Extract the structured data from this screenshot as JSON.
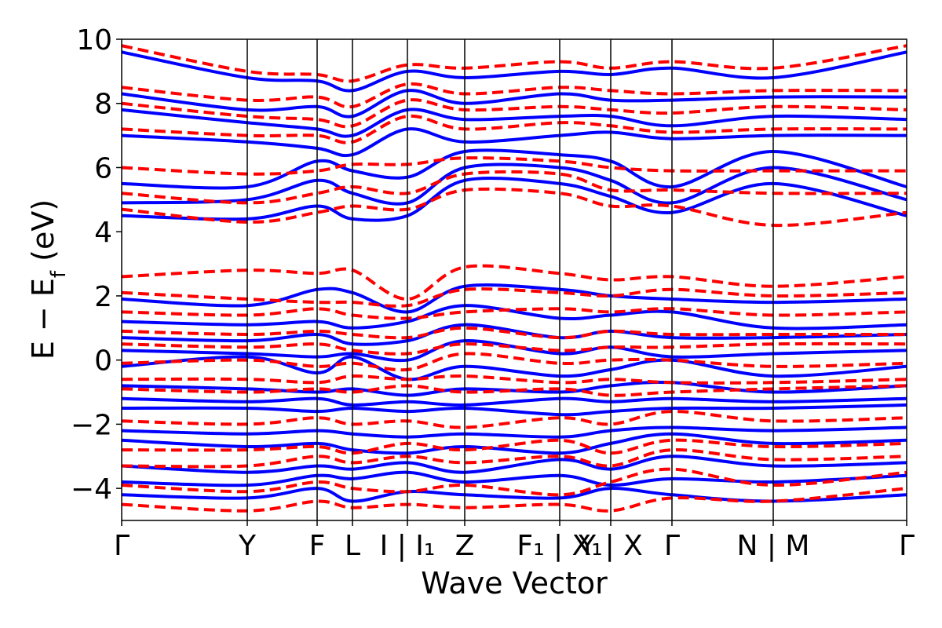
{
  "chart_data": {
    "type": "line",
    "title": "",
    "xlabel": "Wave Vector",
    "ylabel_main": "E − E",
    "ylabel_sub": "f",
    "ylabel_unit": "(eV)",
    "ylim": [
      -5,
      10
    ],
    "yticks": [
      "−4",
      "−2",
      "0",
      "2",
      "4",
      "6",
      "8",
      "10"
    ],
    "ytick_values": [
      -4,
      -2,
      0,
      2,
      4,
      6,
      8,
      10
    ],
    "grid": false,
    "legend": "none",
    "k_points": [
      {
        "label": "Γ",
        "pos": 0
      },
      {
        "label": "Y",
        "pos": 0.16
      },
      {
        "label": "F",
        "pos": 0.249
      },
      {
        "label": "L",
        "pos": 0.294
      },
      {
        "label": "I | I₁",
        "pos": 0.364
      },
      {
        "label": "Z",
        "pos": 0.437
      },
      {
        "label": "F₁ | X₁",
        "pos": 0.558
      },
      {
        "label": "Y | X",
        "pos": 0.623
      },
      {
        "label": "Γ",
        "pos": 0.701
      },
      {
        "label": "N | M",
        "pos": 0.83
      },
      {
        "label": "Γ",
        "pos": 1
      }
    ],
    "series": [
      {
        "style": "solid",
        "color": "#0000ff",
        "bands": [
          {
            "values": [
              -4.2,
              -4.3,
              -4.0,
              -4.4,
              -4.1,
              -4.2,
              -4.3,
              -4.0,
              -4.2,
              -4.4,
              -4.2
            ]
          },
          {
            "values": [
              -3.8,
              -3.9,
              -3.6,
              -3.7,
              -3.5,
              -3.8,
              -3.6,
              -3.9,
              -3.7,
              -3.8,
              -3.6
            ]
          },
          {
            "values": [
              -3.3,
              -3.5,
              -3.3,
              -3.4,
              -3.2,
              -3.5,
              -3.1,
              -3.4,
              -3.0,
              -3.3,
              -3.2
            ]
          },
          {
            "values": [
              -2.5,
              -2.7,
              -2.6,
              -2.8,
              -2.9,
              -2.7,
              -2.9,
              -2.6,
              -2.3,
              -2.6,
              -2.5
            ]
          },
          {
            "values": [
              -2.2,
              -2.3,
              -2.2,
              -2.3,
              -2.4,
              -2.3,
              -2.4,
              -2.2,
              -2.1,
              -2.2,
              -2.1
            ]
          },
          {
            "values": [
              -1.5,
              -1.5,
              -1.6,
              -1.5,
              -1.6,
              -1.5,
              -1.7,
              -1.6,
              -1.5,
              -1.5,
              -1.4
            ]
          },
          {
            "values": [
              -1.2,
              -1.3,
              -1.2,
              -1.4,
              -1.3,
              -1.4,
              -1.2,
              -1.3,
              -1.2,
              -1.3,
              -1.2
            ]
          },
          {
            "values": [
              -0.8,
              -0.9,
              -1.0,
              -0.9,
              -1.1,
              -0.9,
              -1.0,
              -0.8,
              -0.7,
              -1.0,
              -0.8
            ]
          },
          {
            "values": [
              -0.2,
              0.1,
              -0.4,
              0.1,
              -0.6,
              -0.2,
              -0.5,
              -0.3,
              0.0,
              -0.5,
              -0.2
            ]
          },
          {
            "values": [
              0.3,
              0.2,
              0.1,
              0.2,
              0.0,
              0.6,
              0.2,
              0.4,
              0.1,
              0.2,
              0.3
            ]
          },
          {
            "values": [
              0.7,
              0.6,
              0.8,
              0.5,
              0.6,
              1.1,
              0.7,
              0.9,
              0.7,
              0.7,
              0.8
            ]
          },
          {
            "values": [
              1.2,
              1.1,
              1.2,
              1.0,
              1.2,
              1.7,
              1.3,
              1.4,
              1.5,
              1.0,
              1.1
            ]
          },
          {
            "values": [
              1.9,
              1.7,
              2.2,
              2.1,
              1.5,
              2.3,
              2.2,
              2.0,
              1.9,
              1.8,
              1.9
            ]
          },
          {
            "values": [
              4.5,
              4.4,
              4.8,
              4.4,
              4.5,
              5.6,
              5.5,
              5.1,
              4.6,
              5.5,
              4.5
            ]
          },
          {
            "values": [
              4.9,
              5.0,
              5.6,
              5.2,
              4.9,
              6.0,
              6.0,
              5.6,
              4.9,
              6.0,
              5.0
            ]
          },
          {
            "values": [
              5.5,
              5.4,
              6.2,
              5.9,
              5.7,
              6.5,
              6.4,
              6.2,
              5.4,
              6.5,
              5.4
            ]
          },
          {
            "values": [
              7.0,
              6.8,
              6.6,
              6.4,
              7.2,
              6.8,
              7.0,
              7.1,
              6.9,
              7.0,
              7.0
            ]
          },
          {
            "values": [
              7.8,
              7.4,
              7.2,
              7.0,
              7.8,
              7.5,
              7.6,
              7.6,
              7.3,
              7.6,
              7.5
            ]
          },
          {
            "values": [
              8.3,
              7.8,
              7.9,
              7.6,
              8.4,
              8.0,
              8.3,
              8.1,
              8.1,
              8.2,
              8.2
            ]
          },
          {
            "values": [
              9.6,
              8.8,
              8.7,
              8.4,
              9.0,
              8.8,
              9.0,
              8.9,
              9.1,
              8.8,
              9.6
            ]
          }
        ]
      },
      {
        "style": "dashed",
        "color": "#ff0000",
        "bands": [
          {
            "values": [
              -4.5,
              -4.7,
              -4.4,
              -4.6,
              -4.5,
              -4.6,
              -4.5,
              -4.7,
              -4.3,
              -4.4,
              -4.0
            ]
          },
          {
            "values": [
              -3.9,
              -4.1,
              -3.8,
              -4.0,
              -4.1,
              -3.9,
              -4.2,
              -3.8,
              -3.4,
              -3.9,
              -3.5
            ]
          },
          {
            "values": [
              -3.3,
              -3.3,
              -3.0,
              -3.2,
              -3.0,
              -3.2,
              -3.0,
              -3.3,
              -2.8,
              -3.1,
              -3.0
            ]
          },
          {
            "values": [
              -2.8,
              -2.8,
              -2.7,
              -2.9,
              -2.6,
              -2.8,
              -2.5,
              -2.9,
              -2.5,
              -2.7,
              -2.6
            ]
          },
          {
            "values": [
              -1.9,
              -2.0,
              -1.8,
              -2.0,
              -1.9,
              -2.1,
              -1.8,
              -2.0,
              -1.6,
              -1.9,
              -1.8
            ]
          },
          {
            "values": [
              -0.9,
              -1.0,
              -0.9,
              -1.0,
              -0.8,
              -1.0,
              -0.9,
              -1.1,
              -1.0,
              -0.9,
              -0.8
            ]
          },
          {
            "values": [
              -0.6,
              -0.6,
              -0.7,
              -0.5,
              -0.6,
              -0.5,
              -0.7,
              -0.6,
              -0.7,
              -0.7,
              -0.6
            ]
          },
          {
            "values": [
              -0.1,
              0.0,
              -0.2,
              -0.1,
              -0.3,
              0.2,
              -0.1,
              0.0,
              0.0,
              -0.2,
              -0.1
            ]
          },
          {
            "values": [
              0.5,
              0.4,
              0.5,
              0.3,
              0.2,
              0.5,
              0.3,
              0.4,
              0.4,
              0.5,
              0.5
            ]
          },
          {
            "values": [
              0.9,
              0.8,
              0.9,
              0.8,
              0.7,
              1.0,
              0.7,
              0.9,
              0.8,
              0.8,
              0.8
            ]
          },
          {
            "values": [
              1.5,
              1.4,
              1.6,
              1.4,
              1.3,
              1.5,
              1.6,
              1.5,
              1.6,
              1.4,
              1.5
            ]
          },
          {
            "values": [
              2.1,
              1.9,
              1.8,
              1.8,
              1.7,
              2.2,
              2.1,
              2.0,
              2.2,
              2.0,
              2.1
            ]
          },
          {
            "values": [
              2.6,
              2.8,
              2.7,
              2.8,
              1.9,
              2.9,
              2.7,
              2.5,
              2.6,
              2.3,
              2.6
            ]
          },
          {
            "values": [
              4.7,
              4.3,
              4.6,
              4.8,
              4.7,
              5.3,
              5.2,
              4.8,
              4.8,
              4.2,
              4.6
            ]
          },
          {
            "values": [
              5.2,
              4.9,
              5.2,
              5.4,
              5.2,
              5.8,
              5.8,
              5.3,
              5.3,
              5.2,
              5.2
            ]
          },
          {
            "values": [
              6.0,
              5.8,
              5.9,
              6.1,
              6.1,
              6.3,
              6.2,
              6.0,
              5.9,
              5.9,
              5.9
            ]
          },
          {
            "values": [
              7.2,
              7.0,
              7.0,
              6.8,
              7.6,
              7.2,
              7.4,
              7.3,
              7.1,
              7.2,
              7.2
            ]
          },
          {
            "values": [
              8.0,
              7.6,
              7.5,
              7.3,
              8.1,
              7.8,
              7.9,
              7.8,
              7.7,
              7.9,
              7.8
            ]
          },
          {
            "values": [
              8.5,
              8.1,
              8.2,
              7.9,
              8.6,
              8.3,
              8.5,
              8.4,
              8.3,
              8.4,
              8.4
            ]
          },
          {
            "values": [
              9.8,
              9.0,
              8.9,
              8.7,
              9.2,
              9.1,
              9.3,
              9.1,
              9.3,
              9.1,
              9.8
            ]
          }
        ]
      }
    ]
  }
}
